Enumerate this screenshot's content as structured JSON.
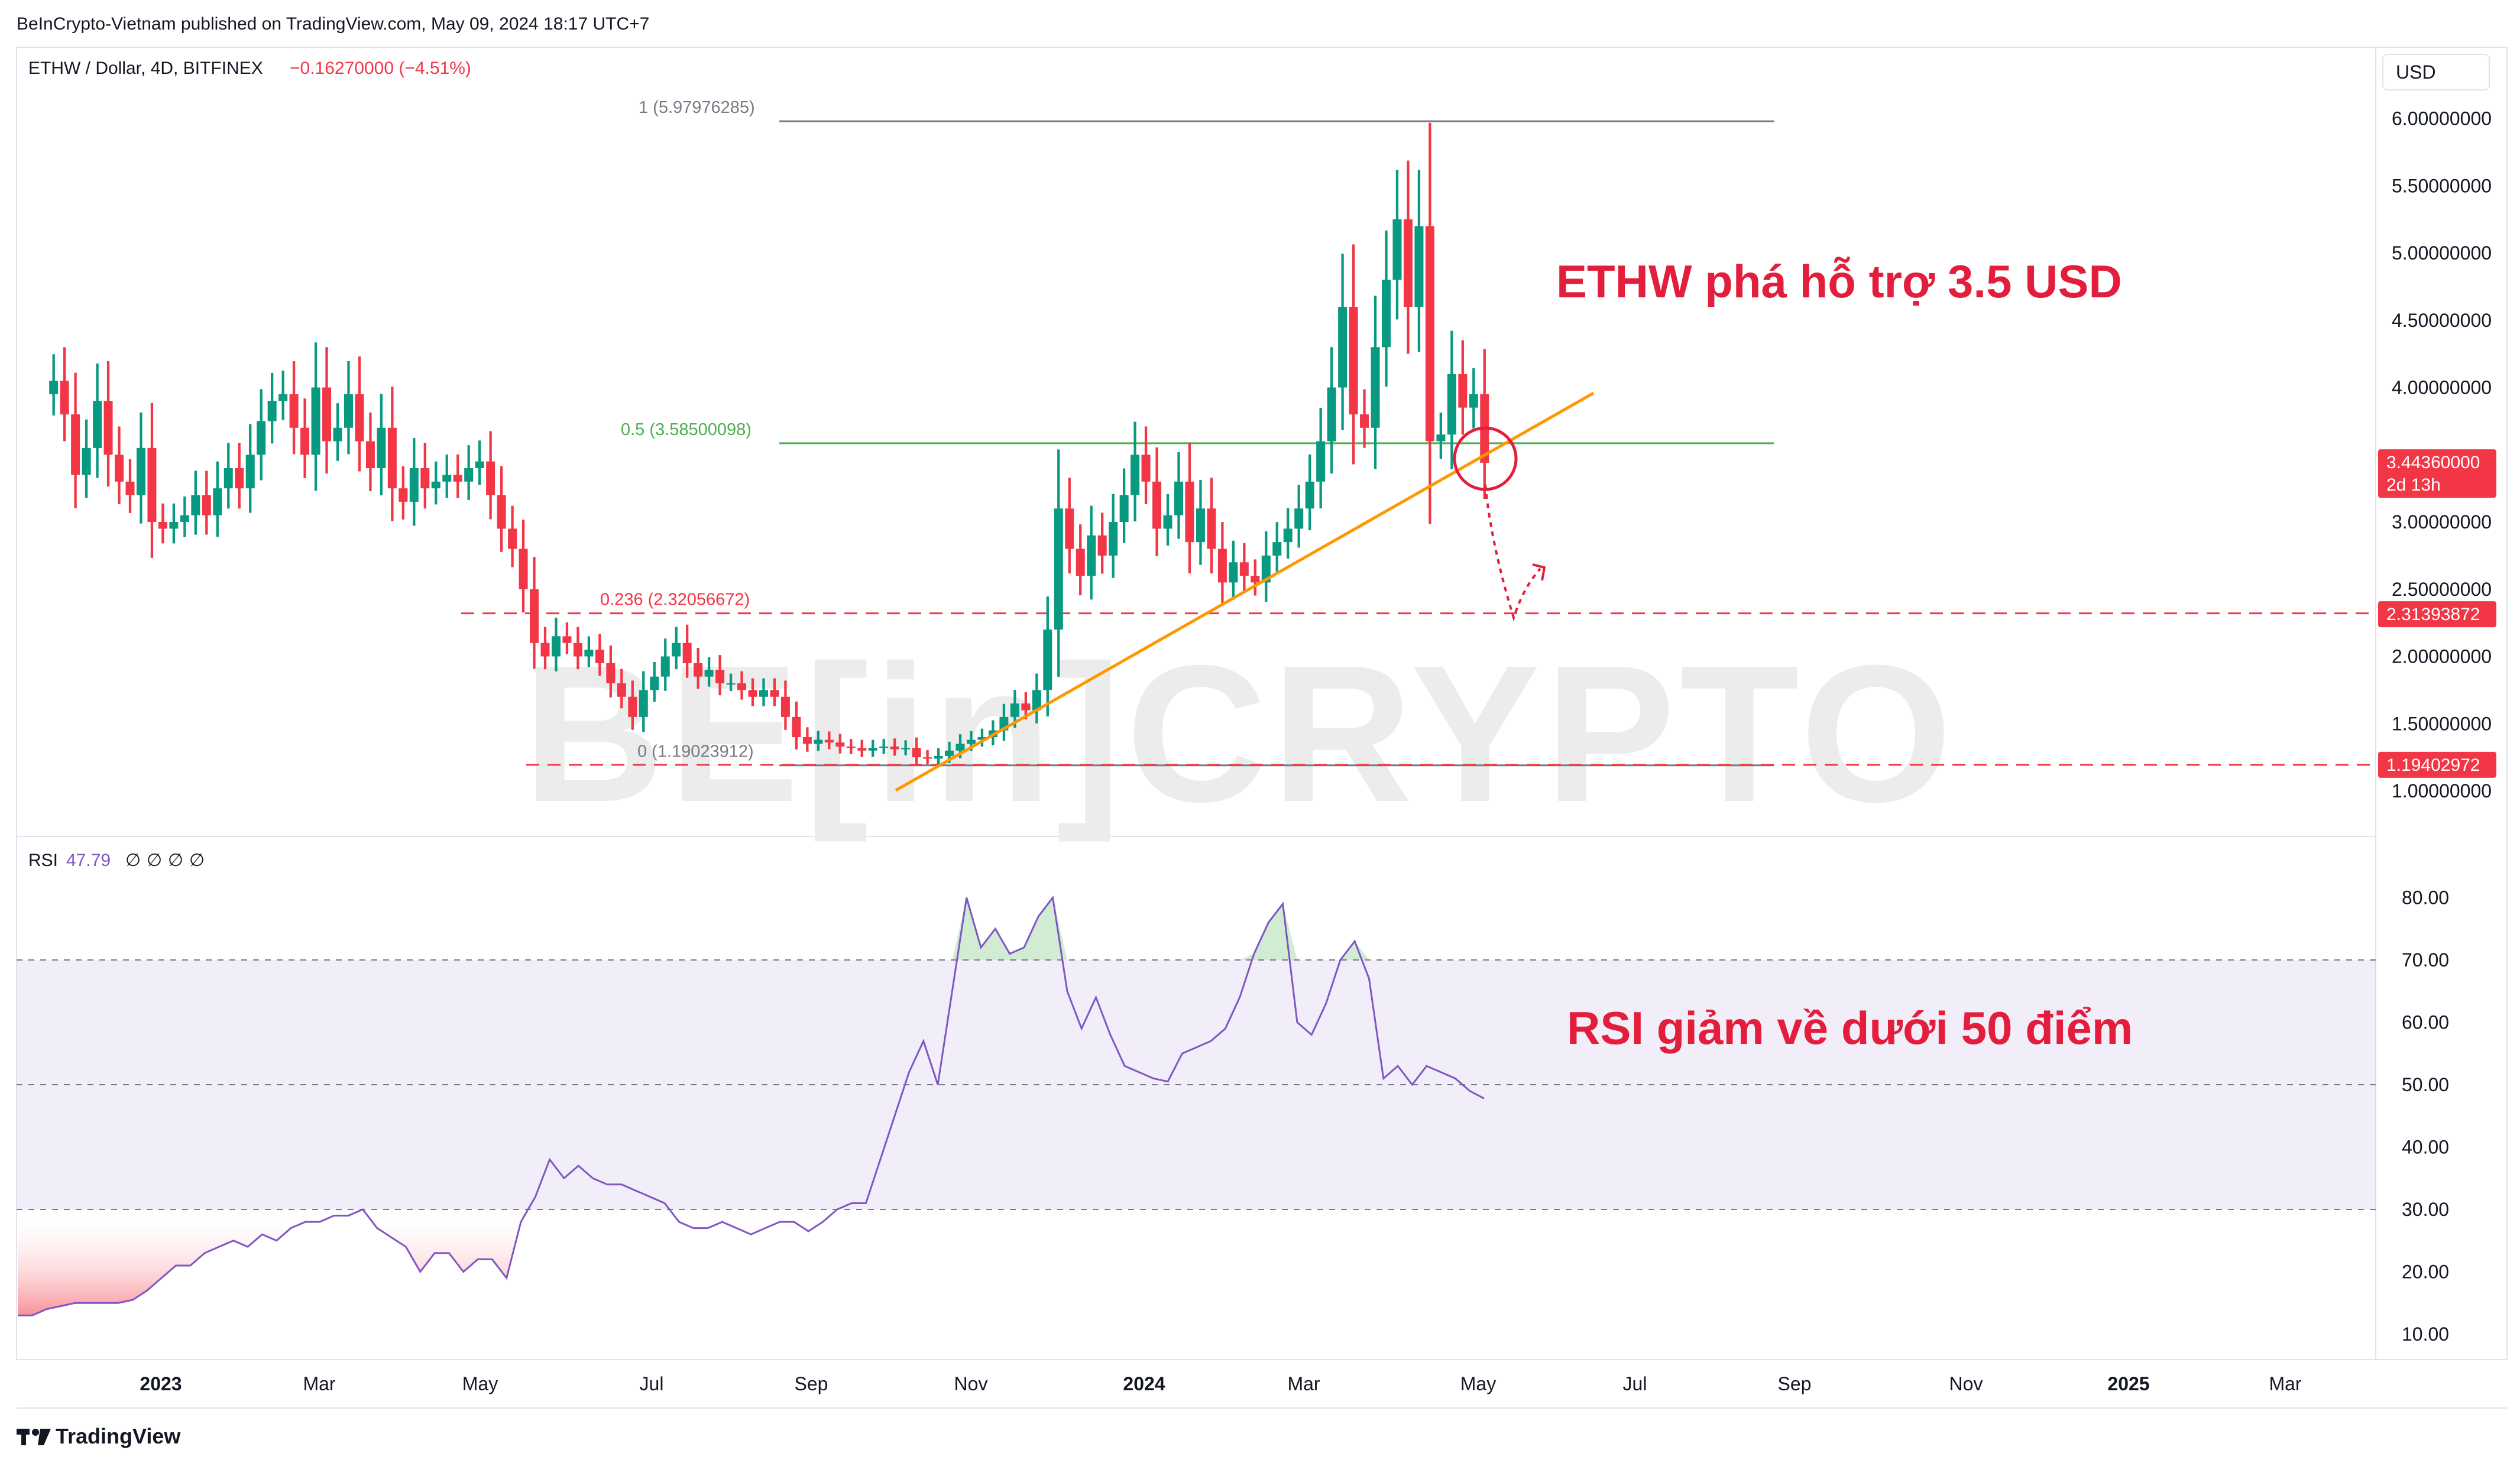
{
  "header": {
    "published": "BeInCrypto-Vietnam published on TradingView.com, May 09, 2024 18:17 UTC+7",
    "symbol": "ETHW / Dollar, 4D, BITFINEX",
    "change": "−0.16270000 (−4.51%)",
    "currency": "USD"
  },
  "footer": {
    "brand": "TradingView"
  },
  "watermark": "BE[in]CRYPTO",
  "colors": {
    "up": "#089981",
    "down": "#f23645",
    "fib_top": "#787b86",
    "fib_mid": "#4caf50",
    "fib_red": "#f23645",
    "trendline": "#ff9800",
    "annotation": "#e31e3c",
    "rsi_line": "#7e57c2",
    "rsi_band": "#7e57c2"
  },
  "chart_data": [
    {
      "type": "candlestick",
      "title": "ETHW / Dollar, 4D, BITFINEX",
      "ylim": [
        0.7,
        6.7
      ],
      "yticks": [
        {
          "value": 1.0,
          "label": "1.00000000"
        },
        {
          "value": 1.5,
          "label": "1.50000000"
        },
        {
          "value": 2.0,
          "label": "2.00000000"
        },
        {
          "value": 2.5,
          "label": "2.50000000"
        },
        {
          "value": 3.0,
          "label": "3.00000000"
        },
        {
          "value": 4.0,
          "label": "4.00000000"
        },
        {
          "value": 4.5,
          "label": "4.50000000"
        },
        {
          "value": 5.0,
          "label": "5.00000000"
        },
        {
          "value": 5.5,
          "label": "5.50000000"
        },
        {
          "value": 6.0,
          "label": "6.00000000"
        }
      ],
      "x_axis": [
        "2023",
        "Mar",
        "May",
        "Jul",
        "Sep",
        "Nov",
        "2024",
        "Mar",
        "May",
        "Jul",
        "Sep",
        "Nov",
        "2025",
        "Mar"
      ],
      "fib_levels": [
        {
          "label": "1 (5.97976285)",
          "value": 5.97976285,
          "color": "#787b86"
        },
        {
          "label": "0.5 (3.58500098)",
          "value": 3.58500098,
          "color": "#4caf50"
        },
        {
          "label": "0.236 (2.32056672)",
          "value": 2.32056672,
          "color": "#f23645"
        },
        {
          "label": "0 (1.19023912)",
          "value": 1.19023912,
          "color": "#787b86"
        }
      ],
      "price_tags": [
        {
          "label": "3.44360000",
          "sub": "2d 13h",
          "value": 3.4436
        },
        {
          "label": "2.31393872",
          "value": 2.31393872
        },
        {
          "label": "1.19402972",
          "value": 1.19402972
        }
      ],
      "annotation": "ETHW phá hỗ trợ 3.5 USD",
      "closes": [
        4.05,
        3.8,
        3.35,
        3.55,
        3.9,
        3.5,
        3.3,
        3.2,
        3.55,
        3.0,
        2.95,
        3.0,
        3.05,
        3.2,
        3.05,
        3.25,
        3.4,
        3.25,
        3.5,
        3.75,
        3.9,
        3.95,
        3.7,
        3.5,
        4.0,
        3.6,
        3.7,
        3.95,
        3.6,
        3.4,
        3.7,
        3.25,
        3.15,
        3.4,
        3.25,
        3.3,
        3.35,
        3.3,
        3.4,
        3.45,
        3.2,
        2.95,
        2.8,
        2.5,
        2.1,
        2.0,
        2.15,
        2.1,
        2.0,
        2.05,
        1.95,
        1.8,
        1.7,
        1.55,
        1.75,
        1.85,
        2.0,
        2.1,
        1.95,
        1.85,
        1.9,
        1.8,
        1.8,
        1.75,
        1.7,
        1.75,
        1.7,
        1.55,
        1.4,
        1.35,
        1.38,
        1.36,
        1.33,
        1.32,
        1.3,
        1.32,
        1.33,
        1.31,
        1.32,
        1.25,
        1.24,
        1.26,
        1.3,
        1.35,
        1.38,
        1.4,
        1.45,
        1.55,
        1.65,
        1.6,
        1.75,
        2.2,
        3.1,
        2.8,
        2.6,
        2.9,
        2.75,
        3.0,
        3.2,
        3.5,
        3.3,
        2.95,
        3.05,
        3.3,
        2.85,
        3.1,
        2.8,
        2.55,
        2.7,
        2.6,
        2.55,
        2.75,
        2.85,
        2.95,
        3.1,
        3.3,
        3.6,
        4.0,
        4.6,
        3.8,
        3.7,
        4.3,
        4.8,
        5.25,
        4.6,
        5.2,
        3.6,
        3.65,
        4.1,
        3.85,
        3.95,
        3.44
      ],
      "last_close": 3.4436
    },
    {
      "type": "line",
      "title": "RSI",
      "value_label": "47.79",
      "extra_values": [
        "∅",
        "∅",
        "∅",
        "∅"
      ],
      "ylim": [
        5,
        90
      ],
      "yticks": [
        10,
        20,
        30,
        40,
        50,
        60,
        70,
        80
      ],
      "ytick_labels": [
        "10.00",
        "20.00",
        "30.00",
        "40.00",
        "50.00",
        "60.00",
        "70.00",
        "80.00"
      ],
      "bands": {
        "upper": 70,
        "middle": 50,
        "lower": 30
      },
      "annotation": "RSI giảm về dưới 50 điểm",
      "values": [
        13,
        13,
        14,
        14.5,
        15,
        15,
        15,
        15,
        15.5,
        17,
        19,
        21,
        21,
        23,
        24,
        25,
        24,
        26,
        25,
        27,
        28,
        28,
        29,
        29,
        30,
        27,
        25.5,
        24,
        20,
        23,
        23,
        20,
        22,
        22,
        19,
        28,
        32,
        38,
        35,
        37,
        35,
        34,
        34,
        33,
        32,
        31,
        28,
        27,
        27,
        28,
        27,
        26,
        27,
        28,
        28,
        26.5,
        28,
        30,
        31,
        31,
        38,
        45,
        52,
        57,
        50,
        65,
        80,
        72,
        75,
        71,
        72,
        77,
        80,
        65,
        59,
        64,
        58,
        53,
        52,
        51,
        50.5,
        55,
        56,
        57,
        59,
        64,
        71,
        76,
        79,
        60,
        58,
        63,
        70,
        73,
        67,
        51,
        53,
        50,
        53,
        52,
        51,
        49,
        47.79
      ]
    }
  ]
}
